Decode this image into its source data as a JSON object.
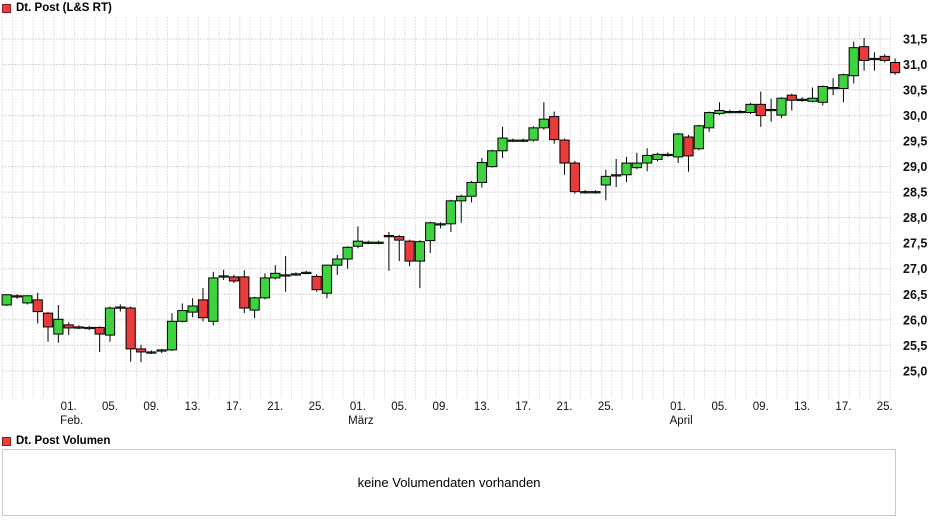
{
  "price_chart": {
    "legend": {
      "label": "Dt. Post (L&S RT)",
      "swatch_color": "#e84040"
    }
  },
  "volume_chart": {
    "legend": {
      "label": "Dt. Post Volumen",
      "swatch_color": "#e84040"
    },
    "message": "keine Volumendaten vorhanden"
  },
  "chart_data": {
    "type": "candlestick",
    "title": "Dt. Post (L&S RT)",
    "grid": true,
    "legend_position": "top-left",
    "ylim": [
      24.6,
      32.05
    ],
    "y_ticks": [
      {
        "value": 31.5,
        "label": "31,5"
      },
      {
        "value": 31.0,
        "label": "31,0"
      },
      {
        "value": 30.5,
        "label": "30,5"
      },
      {
        "value": 30.0,
        "label": "30,0"
      },
      {
        "value": 29.5,
        "label": "29,5"
      },
      {
        "value": 29.0,
        "label": "29,0"
      },
      {
        "value": 28.5,
        "label": "28,5"
      },
      {
        "value": 28.0,
        "label": "28,0"
      },
      {
        "value": 27.5,
        "label": "27,5"
      },
      {
        "value": 27.0,
        "label": "27,0"
      },
      {
        "value": 26.5,
        "label": "26,5"
      },
      {
        "value": 26.0,
        "label": "26,0"
      },
      {
        "value": 25.5,
        "label": "25,5"
      },
      {
        "value": 25.0,
        "label": "25,0"
      }
    ],
    "x_labels": [
      {
        "i": 6,
        "day": "01.",
        "month": "Feb."
      },
      {
        "i": 10,
        "day": "05."
      },
      {
        "i": 14,
        "day": "09."
      },
      {
        "i": 18,
        "day": "13."
      },
      {
        "i": 22,
        "day": "17."
      },
      {
        "i": 26,
        "day": "21."
      },
      {
        "i": 30,
        "day": "25."
      },
      {
        "i": 34,
        "day": "01.",
        "month": "März"
      },
      {
        "i": 38,
        "day": "05."
      },
      {
        "i": 42,
        "day": "09."
      },
      {
        "i": 46,
        "day": "13."
      },
      {
        "i": 50,
        "day": "17."
      },
      {
        "i": 54,
        "day": "21."
      },
      {
        "i": 58,
        "day": "25."
      },
      {
        "i": 65,
        "day": "01.",
        "month": "April"
      },
      {
        "i": 69,
        "day": "05."
      },
      {
        "i": 73,
        "day": "09."
      },
      {
        "i": 77,
        "day": "13."
      },
      {
        "i": 81,
        "day": "17."
      },
      {
        "i": 85,
        "day": "25."
      }
    ],
    "ohlc_order": [
      "open",
      "high",
      "low",
      "close"
    ],
    "candles": [
      [
        26.29,
        26.5,
        26.27,
        26.49
      ],
      [
        26.47,
        26.5,
        26.41,
        26.46
      ],
      [
        26.33,
        26.48,
        26.3,
        26.47
      ],
      [
        26.39,
        26.53,
        25.93,
        26.16
      ],
      [
        26.13,
        26.15,
        25.57,
        25.86
      ],
      [
        25.72,
        26.29,
        25.55,
        26.01
      ],
      [
        25.9,
        25.95,
        25.7,
        25.84
      ],
      [
        25.86,
        25.89,
        25.82,
        25.86
      ],
      [
        25.85,
        25.88,
        25.8,
        25.85
      ],
      [
        25.85,
        25.87,
        25.37,
        25.72
      ],
      [
        25.7,
        26.26,
        25.57,
        26.23
      ],
      [
        26.25,
        26.3,
        26.16,
        26.25
      ],
      [
        26.23,
        26.26,
        25.18,
        25.43
      ],
      [
        25.43,
        25.51,
        25.17,
        25.37
      ],
      [
        25.37,
        25.4,
        25.33,
        25.37
      ],
      [
        25.39,
        25.43,
        25.35,
        25.41
      ],
      [
        25.41,
        26.13,
        25.39,
        25.97
      ],
      [
        25.97,
        26.32,
        25.95,
        26.18
      ],
      [
        26.15,
        26.42,
        26.05,
        26.27
      ],
      [
        26.39,
        26.62,
        25.97,
        26.04
      ],
      [
        25.97,
        26.94,
        25.89,
        26.82
      ],
      [
        26.86,
        26.98,
        26.78,
        26.86
      ],
      [
        26.84,
        26.88,
        26.72,
        26.76
      ],
      [
        26.84,
        26.97,
        26.13,
        26.23
      ],
      [
        26.19,
        26.45,
        26.03,
        26.43
      ],
      [
        26.43,
        26.91,
        26.4,
        26.82
      ],
      [
        26.82,
        27.07,
        26.79,
        26.91
      ],
      [
        26.88,
        27.25,
        26.55,
        26.88
      ],
      [
        26.9,
        26.93,
        26.86,
        26.9
      ],
      [
        26.93,
        26.96,
        26.89,
        26.93
      ],
      [
        26.85,
        26.89,
        26.55,
        26.59
      ],
      [
        26.52,
        27.08,
        26.42,
        27.07
      ],
      [
        27.07,
        27.27,
        26.88,
        27.19
      ],
      [
        27.19,
        27.44,
        27.0,
        27.42
      ],
      [
        27.44,
        27.83,
        27.4,
        27.54
      ],
      [
        27.52,
        27.55,
        27.48,
        27.52
      ],
      [
        27.52,
        27.55,
        27.48,
        27.52
      ],
      [
        27.65,
        27.72,
        26.96,
        27.63
      ],
      [
        27.63,
        27.66,
        27.15,
        27.56
      ],
      [
        27.54,
        27.57,
        27.05,
        27.15
      ],
      [
        27.15,
        27.56,
        26.62,
        27.53
      ],
      [
        27.55,
        27.92,
        27.31,
        27.9
      ],
      [
        27.86,
        27.91,
        27.79,
        27.88
      ],
      [
        27.88,
        28.35,
        27.72,
        28.33
      ],
      [
        28.33,
        28.45,
        27.9,
        28.42
      ],
      [
        28.42,
        28.72,
        28.3,
        28.69
      ],
      [
        28.69,
        29.17,
        28.59,
        29.08
      ],
      [
        29.0,
        29.33,
        28.98,
        29.31
      ],
      [
        29.31,
        29.78,
        29.17,
        29.56
      ],
      [
        29.52,
        29.55,
        29.48,
        29.52
      ],
      [
        29.52,
        29.55,
        29.48,
        29.52
      ],
      [
        29.52,
        29.79,
        29.49,
        29.76
      ],
      [
        29.76,
        30.26,
        29.72,
        29.93
      ],
      [
        29.98,
        30.08,
        29.45,
        29.53
      ],
      [
        29.52,
        29.55,
        28.84,
        29.07
      ],
      [
        29.07,
        29.11,
        28.47,
        28.51
      ],
      [
        28.51,
        28.54,
        28.47,
        28.51
      ],
      [
        28.51,
        28.54,
        28.47,
        28.51
      ],
      [
        28.64,
        28.94,
        28.34,
        28.81
      ],
      [
        28.84,
        29.15,
        28.6,
        28.84
      ],
      [
        28.84,
        29.19,
        28.7,
        29.07
      ],
      [
        28.98,
        29.27,
        28.95,
        29.07
      ],
      [
        29.07,
        29.36,
        28.91,
        29.22
      ],
      [
        29.14,
        29.27,
        29.1,
        29.24
      ],
      [
        29.24,
        29.28,
        29.19,
        29.24
      ],
      [
        29.19,
        29.66,
        29.07,
        29.64
      ],
      [
        29.58,
        29.62,
        28.9,
        29.21
      ],
      [
        29.35,
        29.82,
        29.32,
        29.8
      ],
      [
        29.76,
        30.08,
        29.68,
        30.06
      ],
      [
        30.04,
        30.26,
        30.01,
        30.1
      ],
      [
        30.08,
        30.11,
        30.04,
        30.08
      ],
      [
        30.08,
        30.11,
        30.04,
        30.08
      ],
      [
        30.06,
        30.25,
        30.03,
        30.22
      ],
      [
        30.22,
        30.47,
        29.78,
        30.0
      ],
      [
        30.12,
        30.33,
        29.88,
        30.12
      ],
      [
        30.01,
        30.36,
        29.95,
        30.34
      ],
      [
        30.4,
        30.43,
        30.1,
        30.3
      ],
      [
        30.32,
        30.36,
        30.27,
        30.31
      ],
      [
        30.28,
        30.55,
        30.26,
        30.34
      ],
      [
        30.26,
        30.59,
        30.2,
        30.57
      ],
      [
        30.55,
        30.73,
        30.4,
        30.55
      ],
      [
        30.53,
        30.82,
        30.26,
        30.8
      ],
      [
        30.78,
        31.45,
        30.63,
        31.33
      ],
      [
        31.35,
        31.52,
        30.88,
        31.08
      ],
      [
        31.12,
        31.24,
        30.88,
        31.12
      ],
      [
        31.16,
        31.2,
        31.04,
        31.08
      ],
      [
        31.04,
        31.12,
        30.8,
        30.84
      ]
    ],
    "colors": {
      "up": "#3ed33e",
      "down": "#e83b3b",
      "outline": "#000000",
      "grid_h": "#d6d6d6",
      "grid_v": "#e2e2e2",
      "axis_text": "#111111"
    },
    "volume_note": "keine Volumendaten vorhanden"
  }
}
